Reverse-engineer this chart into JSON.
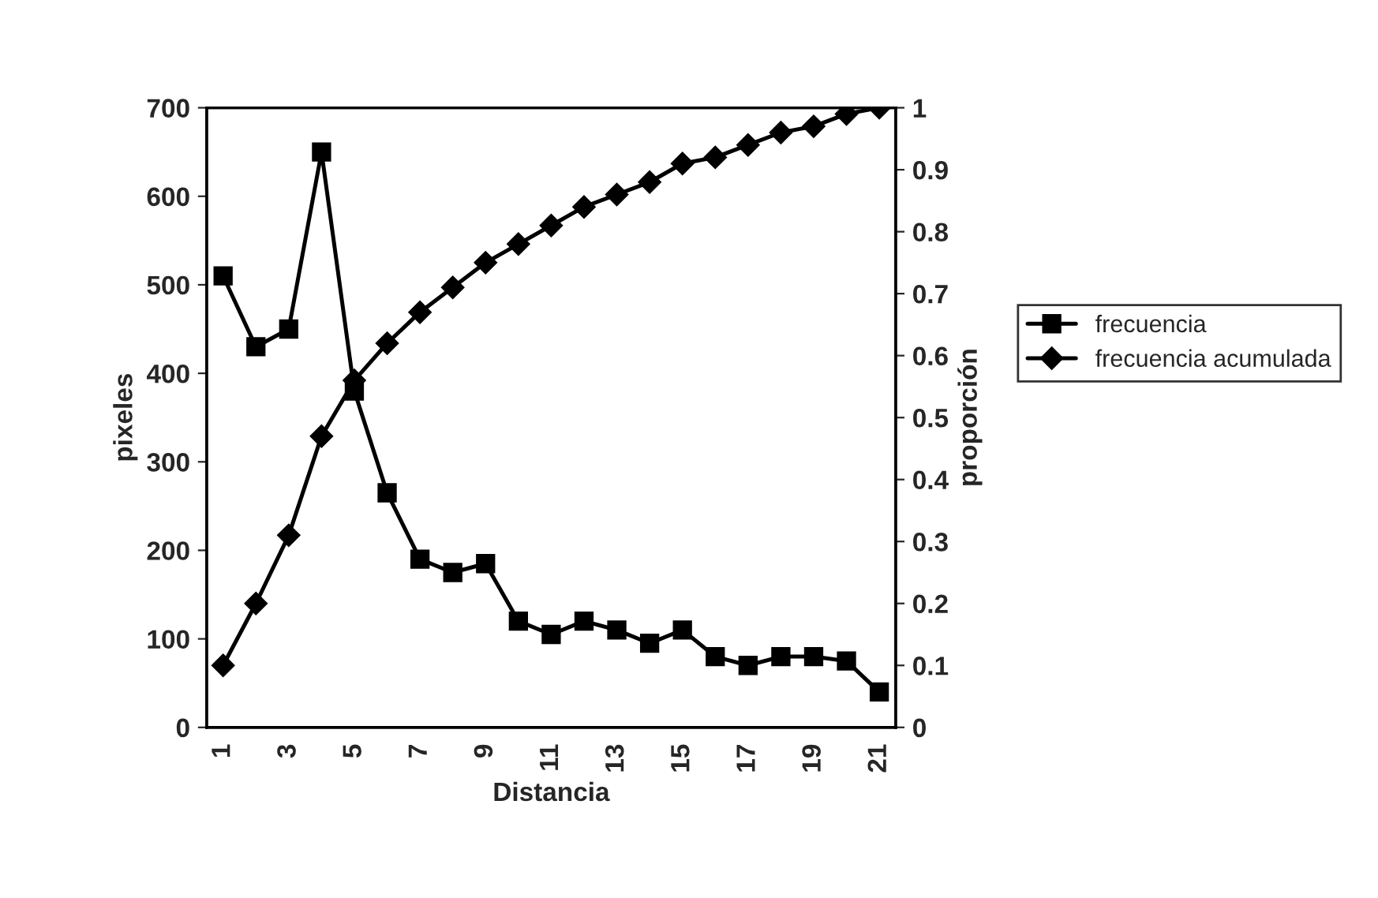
{
  "chart_data": {
    "type": "line",
    "xlabel": "Distancia",
    "ylabel": "pixeles",
    "y2label": "proporción",
    "categories": [
      "1",
      null,
      "3",
      null,
      "5",
      null,
      "7",
      null,
      "9",
      null,
      "11",
      null,
      "13",
      null,
      "15",
      null,
      "17",
      null,
      "19",
      null,
      "21"
    ],
    "series": [
      {
        "name": "frecuencia",
        "color": "#000000",
        "marker": "square",
        "values": [
          510,
          430,
          450,
          650,
          380,
          265,
          190,
          175,
          185,
          120,
          105,
          120,
          110,
          95,
          110,
          80,
          70,
          80,
          80,
          75,
          40
        ]
      },
      {
        "name": "frecuencia acumulada",
        "color": "#000000",
        "marker": "diamond",
        "axis": "y2",
        "values": [
          0.1,
          0.2,
          0.31,
          0.47,
          0.56,
          0.62,
          0.67,
          0.71,
          0.75,
          0.78,
          0.81,
          0.84,
          0.86,
          0.88,
          0.91,
          0.92,
          0.94,
          0.96,
          0.97,
          0.99,
          1.0
        ]
      }
    ],
    "ylim": [
      0,
      700
    ],
    "yticks": [
      0,
      100,
      200,
      300,
      400,
      500,
      600,
      700
    ],
    "y2lim": [
      0,
      1
    ],
    "y2ticks": [
      0,
      0.1,
      0.2,
      0.3,
      0.4,
      0.5,
      0.6,
      0.7,
      0.8,
      0.9,
      1
    ],
    "legend": "right",
    "grid": false
  }
}
